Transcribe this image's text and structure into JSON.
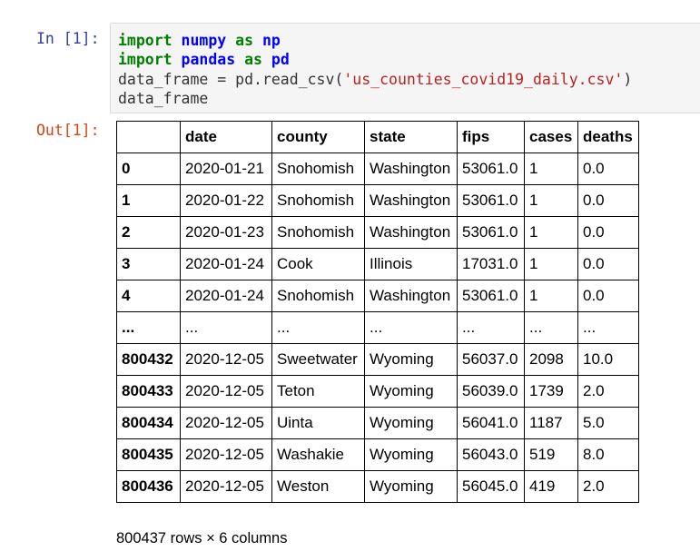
{
  "cell": {
    "in_prompt": "In [1]:",
    "out_prompt": "Out[1]:",
    "code": [
      [
        {
          "t": "kw",
          "v": "import"
        },
        {
          "t": "txt",
          "v": " "
        },
        {
          "t": "mod",
          "v": "numpy"
        },
        {
          "t": "txt",
          "v": " "
        },
        {
          "t": "kw",
          "v": "as"
        },
        {
          "t": "txt",
          "v": " "
        },
        {
          "t": "mod",
          "v": "np"
        }
      ],
      [
        {
          "t": "kw",
          "v": "import"
        },
        {
          "t": "txt",
          "v": " "
        },
        {
          "t": "mod",
          "v": "pandas"
        },
        {
          "t": "txt",
          "v": " "
        },
        {
          "t": "kw",
          "v": "as"
        },
        {
          "t": "txt",
          "v": " "
        },
        {
          "t": "mod",
          "v": "pd"
        }
      ],
      [
        {
          "t": "txt",
          "v": "data_frame = pd.read_csv("
        },
        {
          "t": "str",
          "v": "'us_counties_covid19_daily.csv'"
        },
        {
          "t": "txt",
          "v": ")"
        }
      ],
      [
        {
          "t": "txt",
          "v": "data_frame"
        }
      ]
    ]
  },
  "dataframe": {
    "columns": [
      "",
      "date",
      "county",
      "state",
      "fips",
      "cases",
      "deaths"
    ],
    "rows": [
      [
        "0",
        "2020-01-21",
        "Snohomish",
        "Washington",
        "53061.0",
        "1",
        "0.0"
      ],
      [
        "1",
        "2020-01-22",
        "Snohomish",
        "Washington",
        "53061.0",
        "1",
        "0.0"
      ],
      [
        "2",
        "2020-01-23",
        "Snohomish",
        "Washington",
        "53061.0",
        "1",
        "0.0"
      ],
      [
        "3",
        "2020-01-24",
        "Cook",
        "Illinois",
        "17031.0",
        "1",
        "0.0"
      ],
      [
        "4",
        "2020-01-24",
        "Snohomish",
        "Washington",
        "53061.0",
        "1",
        "0.0"
      ],
      [
        "...",
        "...",
        "...",
        "...",
        "...",
        "...",
        "..."
      ],
      [
        "800432",
        "2020-12-05",
        "Sweetwater",
        "Wyoming",
        "56037.0",
        "2098",
        "10.0"
      ],
      [
        "800433",
        "2020-12-05",
        "Teton",
        "Wyoming",
        "56039.0",
        "1739",
        "2.0"
      ],
      [
        "800434",
        "2020-12-05",
        "Uinta",
        "Wyoming",
        "56041.0",
        "1187",
        "5.0"
      ],
      [
        "800435",
        "2020-12-05",
        "Washakie",
        "Wyoming",
        "56043.0",
        "519",
        "8.0"
      ],
      [
        "800436",
        "2020-12-05",
        "Weston",
        "Wyoming",
        "56045.0",
        "419",
        "2.0"
      ]
    ],
    "shape_text": "800437 rows × 6 columns"
  }
}
